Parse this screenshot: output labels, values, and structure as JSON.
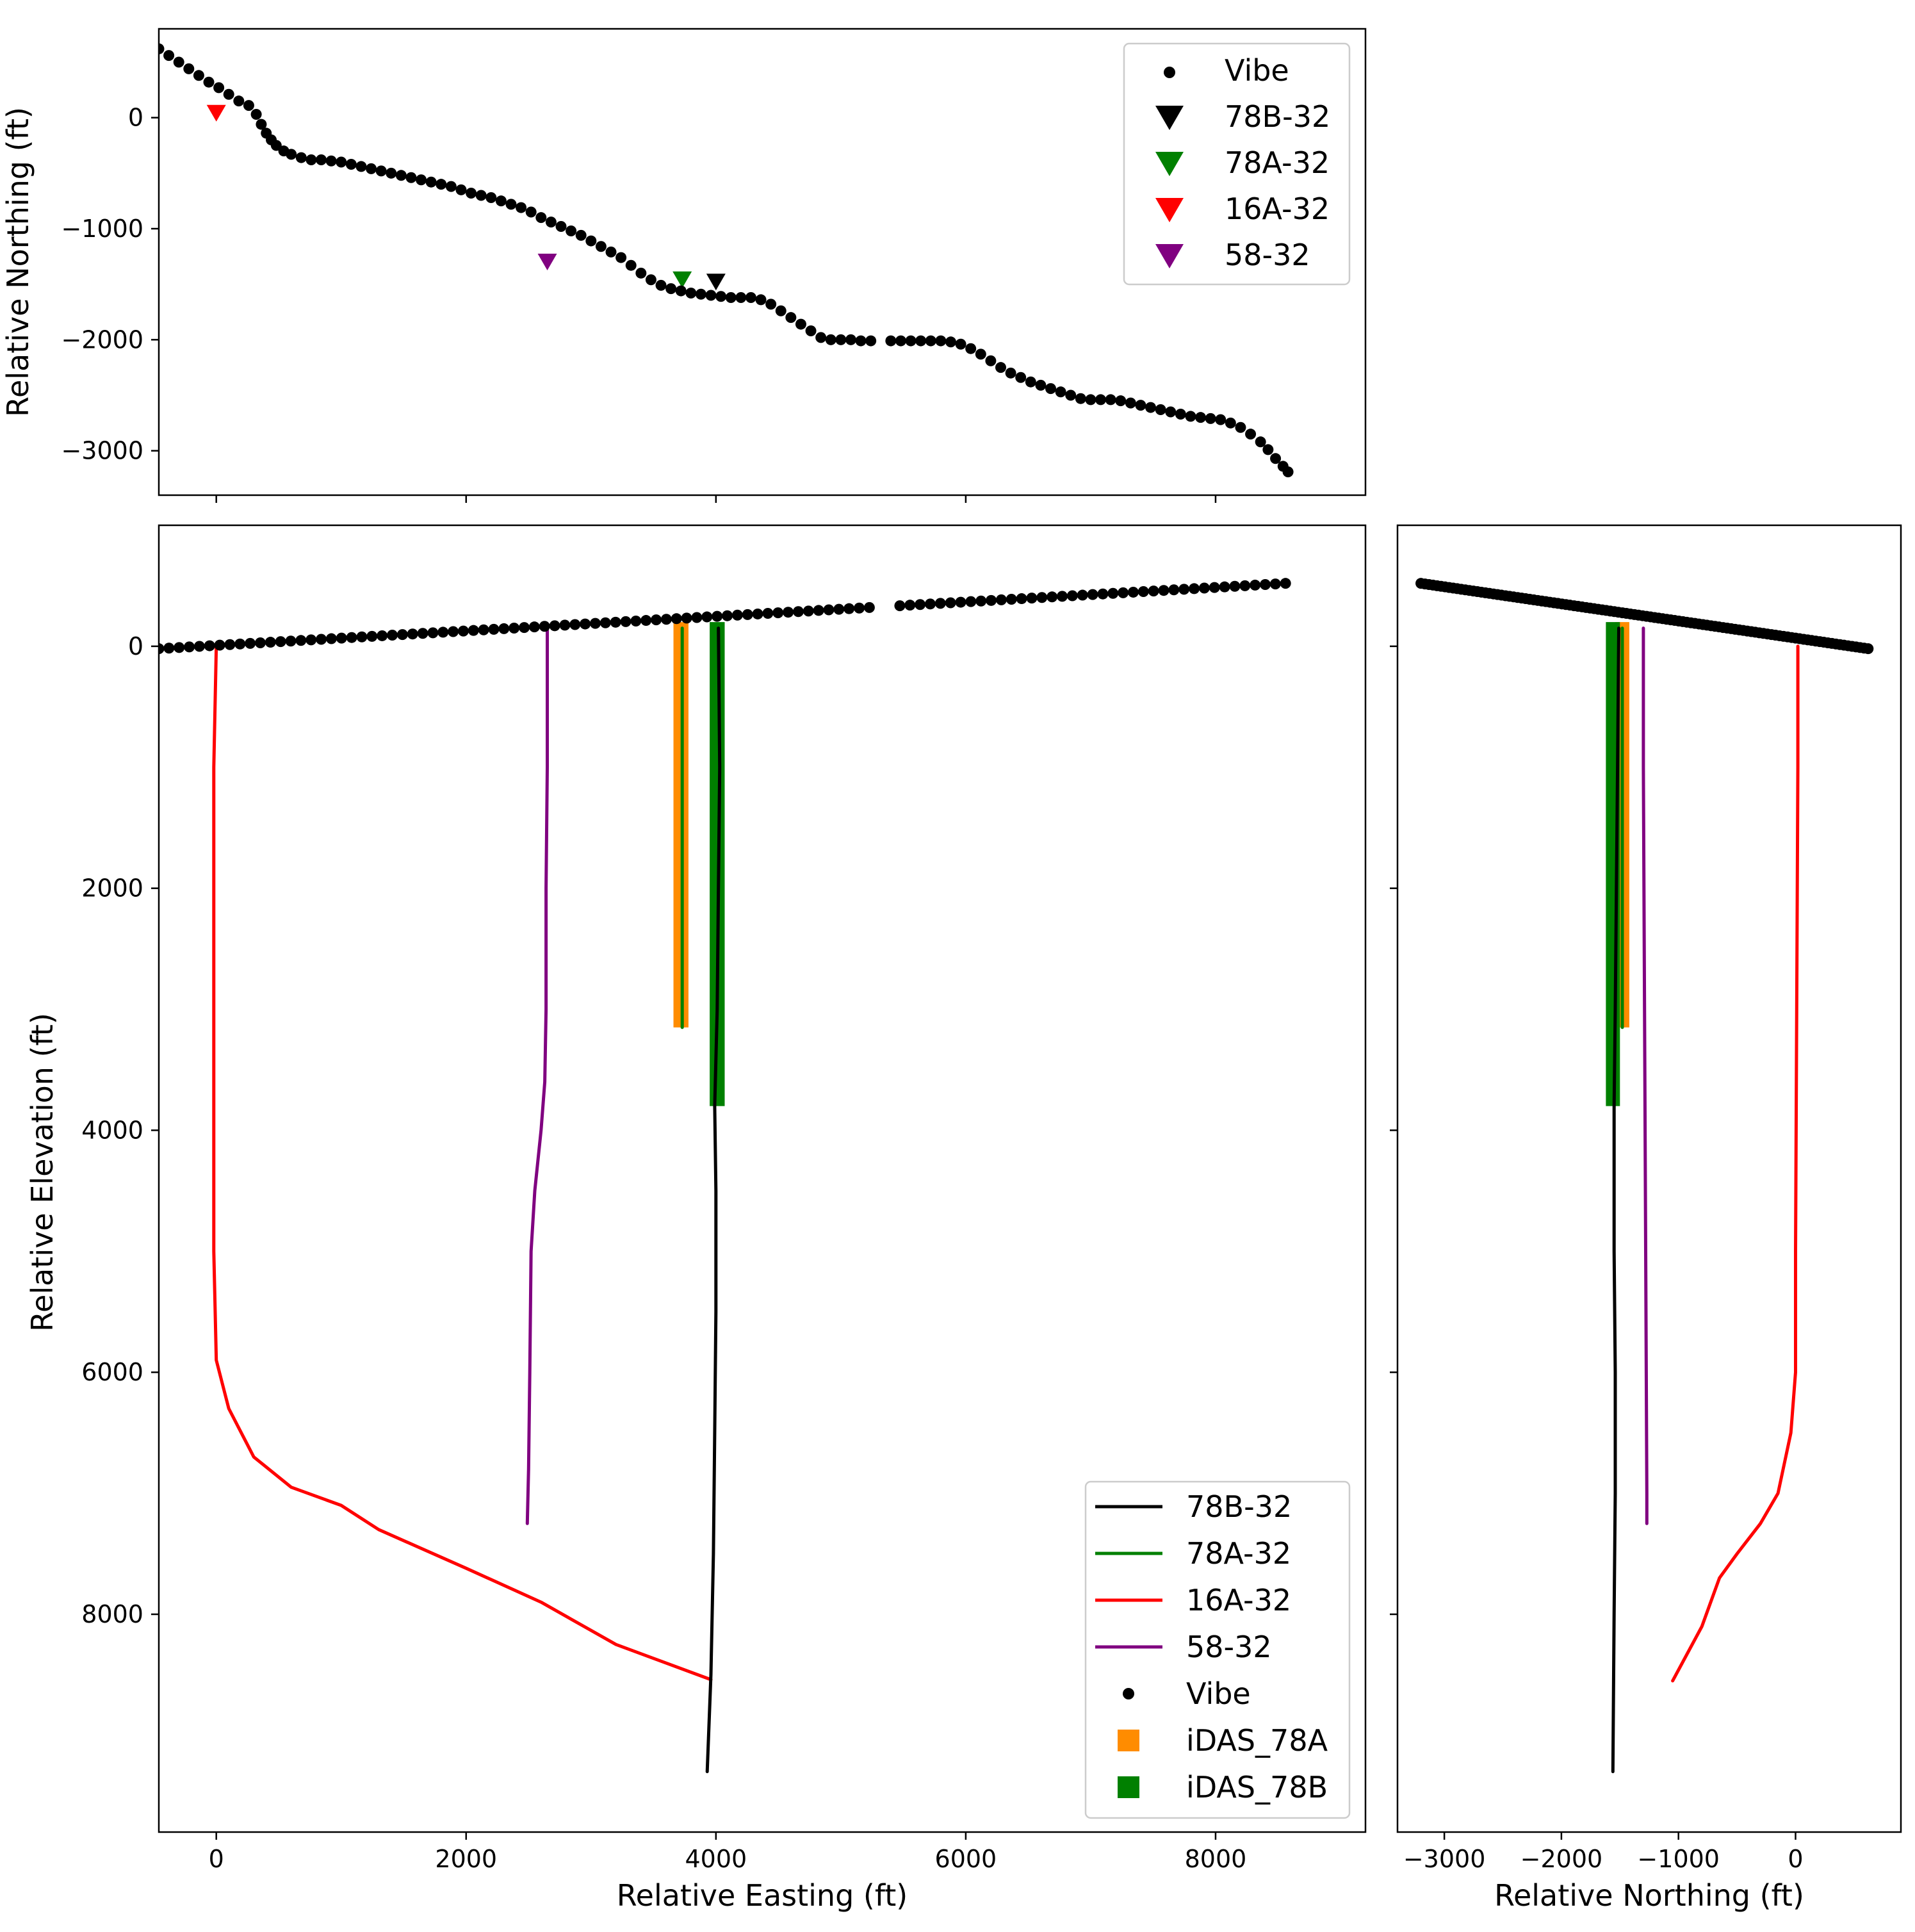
{
  "colors": {
    "vibe": "#000000",
    "78B-32": "#000000",
    "78A-32": "#008000",
    "16A-32": "#ff0000",
    "58-32": "#800080",
    "iDAS_78A": "#ff8c00",
    "iDAS_78B": "#008000"
  },
  "chart_data": [
    {
      "type": "scatter",
      "id": "map-view",
      "title": "",
      "xlabel": "",
      "ylabel": "Relative Northing (ft)",
      "xlim": [
        -460,
        9200
      ],
      "ylim": [
        -3400,
        800
      ],
      "xticks": [
        0,
        2000,
        4000,
        6000,
        8000
      ],
      "xtick_labels": [
        "",
        "",
        "",
        "",
        ""
      ],
      "yticks": [
        0,
        -1000,
        -2000,
        -3000
      ],
      "ytick_labels": [
        "0",
        "−1000",
        "−2000",
        "−3000"
      ],
      "legend": {
        "position": "top-right",
        "entries": [
          {
            "label": "Vibe",
            "marker": "dot",
            "series": "vibe"
          },
          {
            "label": "78B-32",
            "marker": "triangle-down",
            "series": "78B-32"
          },
          {
            "label": "78A-32",
            "marker": "triangle-down",
            "series": "78A-32"
          },
          {
            "label": "16A-32",
            "marker": "triangle-down",
            "series": "16A-32"
          },
          {
            "label": "58-32",
            "marker": "triangle-down",
            "series": "58-32"
          }
        ]
      },
      "series": [
        {
          "name": "Vibe",
          "marker": "dot",
          "points": [
            [
              -460,
              620
            ],
            [
              -380,
              560
            ],
            [
              -300,
              500
            ],
            [
              -220,
              440
            ],
            [
              -140,
              380
            ],
            [
              -60,
              320
            ],
            [
              20,
              270
            ],
            [
              100,
              210
            ],
            [
              180,
              150
            ],
            [
              260,
              110
            ],
            [
              320,
              30
            ],
            [
              360,
              -60
            ],
            [
              400,
              -140
            ],
            [
              440,
              -200
            ],
            [
              480,
              -250
            ],
            [
              540,
              -300
            ],
            [
              600,
              -330
            ],
            [
              680,
              -360
            ],
            [
              760,
              -380
            ],
            [
              840,
              -380
            ],
            [
              920,
              -390
            ],
            [
              1000,
              -400
            ],
            [
              1080,
              -420
            ],
            [
              1160,
              -440
            ],
            [
              1240,
              -460
            ],
            [
              1320,
              -480
            ],
            [
              1400,
              -500
            ],
            [
              1480,
              -520
            ],
            [
              1560,
              -540
            ],
            [
              1640,
              -560
            ],
            [
              1720,
              -580
            ],
            [
              1800,
              -600
            ],
            [
              1880,
              -620
            ],
            [
              1960,
              -650
            ],
            [
              2040,
              -680
            ],
            [
              2120,
              -700
            ],
            [
              2200,
              -720
            ],
            [
              2280,
              -750
            ],
            [
              2360,
              -780
            ],
            [
              2440,
              -810
            ],
            [
              2520,
              -850
            ],
            [
              2600,
              -900
            ],
            [
              2680,
              -940
            ],
            [
              2760,
              -980
            ],
            [
              2840,
              -1020
            ],
            [
              2920,
              -1060
            ],
            [
              3000,
              -1110
            ],
            [
              3080,
              -1160
            ],
            [
              3160,
              -1210
            ],
            [
              3240,
              -1260
            ],
            [
              3320,
              -1330
            ],
            [
              3400,
              -1400
            ],
            [
              3480,
              -1460
            ],
            [
              3560,
              -1510
            ],
            [
              3640,
              -1540
            ],
            [
              3720,
              -1560
            ],
            [
              3800,
              -1580
            ],
            [
              3880,
              -1590
            ],
            [
              3960,
              -1600
            ],
            [
              4040,
              -1610
            ],
            [
              4120,
              -1620
            ],
            [
              4200,
              -1620
            ],
            [
              4280,
              -1620
            ],
            [
              4360,
              -1640
            ],
            [
              4440,
              -1680
            ],
            [
              4520,
              -1740
            ],
            [
              4600,
              -1800
            ],
            [
              4680,
              -1860
            ],
            [
              4760,
              -1920
            ],
            [
              4840,
              -1980
            ],
            [
              4920,
              -2000
            ],
            [
              5000,
              -2000
            ],
            [
              5080,
              -2000
            ],
            [
              5160,
              -2010
            ],
            [
              5240,
              -2010
            ],
            [
              5400,
              -2010
            ],
            [
              5480,
              -2010
            ],
            [
              5560,
              -2010
            ],
            [
              5640,
              -2010
            ],
            [
              5720,
              -2010
            ],
            [
              5800,
              -2010
            ],
            [
              5880,
              -2020
            ],
            [
              5960,
              -2040
            ],
            [
              6040,
              -2080
            ],
            [
              6120,
              -2130
            ],
            [
              6200,
              -2190
            ],
            [
              6280,
              -2250
            ],
            [
              6360,
              -2300
            ],
            [
              6440,
              -2340
            ],
            [
              6520,
              -2380
            ],
            [
              6600,
              -2410
            ],
            [
              6680,
              -2440
            ],
            [
              6760,
              -2470
            ],
            [
              6840,
              -2500
            ],
            [
              6920,
              -2530
            ],
            [
              7000,
              -2540
            ],
            [
              7080,
              -2540
            ],
            [
              7160,
              -2540
            ],
            [
              7240,
              -2550
            ],
            [
              7320,
              -2570
            ],
            [
              7400,
              -2590
            ],
            [
              7480,
              -2610
            ],
            [
              7560,
              -2630
            ],
            [
              7640,
              -2650
            ],
            [
              7720,
              -2670
            ],
            [
              7800,
              -2690
            ],
            [
              7880,
              -2700
            ],
            [
              7960,
              -2710
            ],
            [
              8040,
              -2720
            ],
            [
              8120,
              -2750
            ],
            [
              8200,
              -2790
            ],
            [
              8280,
              -2850
            ],
            [
              8360,
              -2920
            ],
            [
              8420,
              -2990
            ],
            [
              8480,
              -3070
            ],
            [
              8540,
              -3140
            ],
            [
              8580,
              -3190
            ]
          ]
        },
        {
          "name": "78B-32",
          "marker": "triangle-down",
          "points": [
            [
              4000,
              -1480
            ]
          ]
        },
        {
          "name": "78A-32",
          "marker": "triangle-down",
          "points": [
            [
              3730,
              -1460
            ]
          ]
        },
        {
          "name": "16A-32",
          "marker": "triangle-down",
          "points": [
            [
              0,
              40
            ]
          ]
        },
        {
          "name": "58-32",
          "marker": "triangle-down",
          "points": [
            [
              2650,
              -1300
            ]
          ]
        }
      ]
    },
    {
      "type": "line",
      "id": "easting-section",
      "title": "",
      "xlabel": "Relative Easting (ft)",
      "ylabel": "Relative Elevation (ft)",
      "xlim": [
        -460,
        9200
      ],
      "ylim": [
        9800,
        -1000
      ],
      "xticks": [
        0,
        2000,
        4000,
        6000,
        8000
      ],
      "xtick_labels": [
        "0",
        "2000",
        "4000",
        "6000",
        "8000"
      ],
      "yticks": [
        0,
        2000,
        4000,
        6000,
        8000
      ],
      "ytick_labels": [
        "0",
        "2000",
        "4000",
        "6000",
        "8000"
      ],
      "legend": {
        "position": "bottom-right",
        "entries": [
          {
            "label": "78B-32",
            "marker": "line",
            "series": "78B-32"
          },
          {
            "label": "78A-32",
            "marker": "line",
            "series": "78A-32"
          },
          {
            "label": "16A-32",
            "marker": "line",
            "series": "16A-32"
          },
          {
            "label": "58-32",
            "marker": "line",
            "series": "58-32"
          },
          {
            "label": "Vibe",
            "marker": "dot",
            "series": "vibe"
          },
          {
            "label": "iDAS_78A",
            "marker": "square",
            "series": "iDAS_78A"
          },
          {
            "label": "iDAS_78B",
            "marker": "square",
            "series": "iDAS_78B"
          }
        ]
      },
      "series": [
        {
          "name": "Vibe",
          "marker": "dot",
          "x_range": [
            -460,
            8560
          ],
          "y_range": [
            20,
            -520
          ],
          "gap": [
            5240,
            5400
          ]
        },
        {
          "name": "iDAS_78A",
          "type": "band",
          "x": [
            3660,
            3780
          ],
          "depth": [
            -200,
            3150
          ]
        },
        {
          "name": "iDAS_78B",
          "type": "band",
          "x": [
            3950,
            4070
          ],
          "depth": [
            -200,
            3800
          ]
        },
        {
          "name": "16A-32",
          "points": [
            [
              0,
              0
            ],
            [
              -20,
              1000
            ],
            [
              -20,
              3000
            ],
            [
              -20,
              5000
            ],
            [
              0,
              5900
            ],
            [
              100,
              6300
            ],
            [
              300,
              6700
            ],
            [
              600,
              6950
            ],
            [
              1000,
              7100
            ],
            [
              1300,
              7300
            ],
            [
              2000,
              7620
            ],
            [
              2600,
              7900
            ],
            [
              3200,
              8250
            ],
            [
              3960,
              8540
            ]
          ]
        },
        {
          "name": "58-32",
          "points": [
            [
              2650,
              -150
            ],
            [
              2650,
              1000
            ],
            [
              2640,
              2000
            ],
            [
              2640,
              3000
            ],
            [
              2630,
              3600
            ],
            [
              2600,
              4000
            ],
            [
              2550,
              4500
            ],
            [
              2520,
              5000
            ],
            [
              2510,
              6000
            ],
            [
              2500,
              6800
            ],
            [
              2490,
              7250
            ]
          ]
        },
        {
          "name": "78B-32",
          "points": [
            [
              4020,
              -150
            ],
            [
              4030,
              1000
            ],
            [
              4020,
              2000
            ],
            [
              4010,
              3000
            ],
            [
              3990,
              3800
            ],
            [
              4000,
              4500
            ],
            [
              4000,
              5500
            ],
            [
              3990,
              6500
            ],
            [
              3980,
              7500
            ],
            [
              3960,
              8500
            ],
            [
              3930,
              9300
            ]
          ]
        },
        {
          "name": "78A-32",
          "points": [
            [
              3730,
              -150
            ],
            [
              3730,
              3150
            ]
          ]
        }
      ]
    },
    {
      "type": "line",
      "id": "northing-section",
      "title": "",
      "xlabel": "Relative Northing (ft)",
      "ylabel": "",
      "xlim": [
        -3400,
        900
      ],
      "ylim": [
        9800,
        -1000
      ],
      "xticks": [
        -3000,
        -2000,
        -1000,
        0
      ],
      "xtick_labels": [
        "−3000",
        "−2000",
        "−1000",
        "0"
      ],
      "yticks": [
        0,
        2000,
        4000,
        6000,
        8000
      ],
      "ytick_labels": [
        "",
        "",
        "",
        "",
        ""
      ],
      "series": [
        {
          "name": "Vibe",
          "marker": "dot",
          "x_range": [
            -3200,
            620
          ],
          "y_range": [
            -520,
            20
          ]
        },
        {
          "name": "iDAS_78A",
          "type": "band",
          "x": [
            -1540,
            -1420
          ],
          "depth": [
            -200,
            3150
          ]
        },
        {
          "name": "iDAS_78B",
          "type": "band",
          "x": [
            -1620,
            -1500
          ],
          "depth": [
            -200,
            3800
          ]
        },
        {
          "name": "16A-32",
          "points": [
            [
              20,
              0
            ],
            [
              20,
              1000
            ],
            [
              10,
              3000
            ],
            [
              0,
              5000
            ],
            [
              0,
              6000
            ],
            [
              -40,
              6500
            ],
            [
              -150,
              7000
            ],
            [
              -300,
              7250
            ],
            [
              -500,
              7500
            ],
            [
              -650,
              7700
            ],
            [
              -800,
              8100
            ],
            [
              -1050,
              8550
            ]
          ]
        },
        {
          "name": "58-32",
          "points": [
            [
              -1300,
              -150
            ],
            [
              -1300,
              1000
            ],
            [
              -1290,
              3000
            ],
            [
              -1280,
              5000
            ],
            [
              -1270,
              7000
            ],
            [
              -1270,
              7250
            ]
          ]
        },
        {
          "name": "78B-32",
          "points": [
            [
              -1510,
              -150
            ],
            [
              -1520,
              1000
            ],
            [
              -1530,
              2000
            ],
            [
              -1540,
              3000
            ],
            [
              -1550,
              3800
            ],
            [
              -1550,
              5000
            ],
            [
              -1540,
              6000
            ],
            [
              -1540,
              7000
            ],
            [
              -1550,
              8000
            ],
            [
              -1560,
              9300
            ]
          ]
        },
        {
          "name": "78A-32",
          "points": [
            [
              -1480,
              -150
            ],
            [
              -1480,
              3150
            ]
          ]
        }
      ]
    }
  ]
}
